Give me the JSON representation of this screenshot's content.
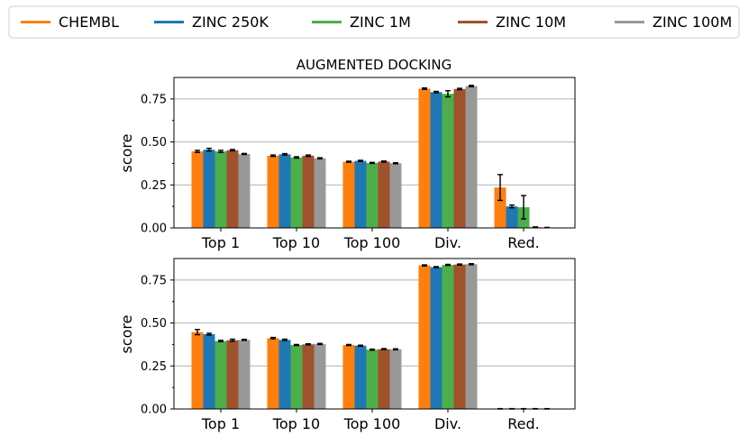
{
  "chart_data": [
    {
      "type": "bar",
      "title": "AUGMENTED DOCKING",
      "xlabel": "",
      "ylabel": "score",
      "ylim": [
        0,
        0.875
      ],
      "yticks": [
        "0.00",
        "0.25",
        "0.50",
        "0.75"
      ],
      "grid": "y",
      "categories": [
        "Top 1",
        "Top 10",
        "Top 100",
        "Div.",
        "Red."
      ],
      "series": [
        {
          "name": "CHEMBL",
          "color": "#ff7f0e",
          "values": [
            0.445,
            0.42,
            0.385,
            0.81,
            0.235
          ],
          "errors": [
            0.006,
            0.004,
            0.003,
            0.004,
            0.075
          ]
        },
        {
          "name": "ZINC 250K",
          "color": "#1f77b4",
          "values": [
            0.455,
            0.428,
            0.39,
            0.79,
            0.125
          ],
          "errors": [
            0.008,
            0.004,
            0.003,
            0.004,
            0.008
          ]
        },
        {
          "name": "ZINC 1M",
          "color": "#4daf4a",
          "values": [
            0.445,
            0.41,
            0.378,
            0.78,
            0.12
          ],
          "errors": [
            0.006,
            0.004,
            0.003,
            0.018,
            0.068
          ]
        },
        {
          "name": "ZINC 10M",
          "color": "#a0522d",
          "values": [
            0.452,
            0.42,
            0.386,
            0.808,
            0.004
          ],
          "errors": [
            0.004,
            0.004,
            0.003,
            0.004,
            0.002
          ]
        },
        {
          "name": "ZINC 100M",
          "color": "#999999",
          "values": [
            0.43,
            0.405,
            0.376,
            0.825,
            0.002
          ],
          "errors": [
            0.003,
            0.003,
            0.003,
            0.004,
            0.001
          ]
        }
      ]
    },
    {
      "type": "bar",
      "title": "",
      "xlabel": "",
      "ylabel": "score",
      "ylim": [
        0,
        0.875
      ],
      "yticks": [
        "0.00",
        "0.25",
        "0.50",
        "0.75"
      ],
      "grid": "y",
      "categories": [
        "Top 1",
        "Top 10",
        "Top 100",
        "Div.",
        "Red."
      ],
      "series": [
        {
          "name": "CHEMBL",
          "color": "#ff7f0e",
          "values": [
            0.447,
            0.412,
            0.372,
            0.835,
            0.001
          ],
          "errors": [
            0.015,
            0.004,
            0.003,
            0.003,
            0.001
          ]
        },
        {
          "name": "ZINC 250K",
          "color": "#1f77b4",
          "values": [
            0.435,
            0.402,
            0.368,
            0.825,
            0.001
          ],
          "errors": [
            0.005,
            0.004,
            0.003,
            0.003,
            0.001
          ]
        },
        {
          "name": "ZINC 1M",
          "color": "#4daf4a",
          "values": [
            0.395,
            0.372,
            0.345,
            0.838,
            0.001
          ],
          "errors": [
            0.004,
            0.003,
            0.003,
            0.003,
            0.001
          ]
        },
        {
          "name": "ZINC 10M",
          "color": "#a0522d",
          "values": [
            0.4,
            0.376,
            0.348,
            0.84,
            0.001
          ],
          "errors": [
            0.006,
            0.003,
            0.003,
            0.003,
            0.001
          ]
        },
        {
          "name": "ZINC 100M",
          "color": "#999999",
          "values": [
            0.402,
            0.378,
            0.347,
            0.842,
            0.001
          ],
          "errors": [
            0.003,
            0.003,
            0.003,
            0.003,
            0.001
          ]
        }
      ]
    }
  ],
  "legend": {
    "placement": "top",
    "items": [
      "CHEMBL",
      "ZINC 250K",
      "ZINC 1M",
      "ZINC 10M",
      "ZINC 100M"
    ]
  }
}
